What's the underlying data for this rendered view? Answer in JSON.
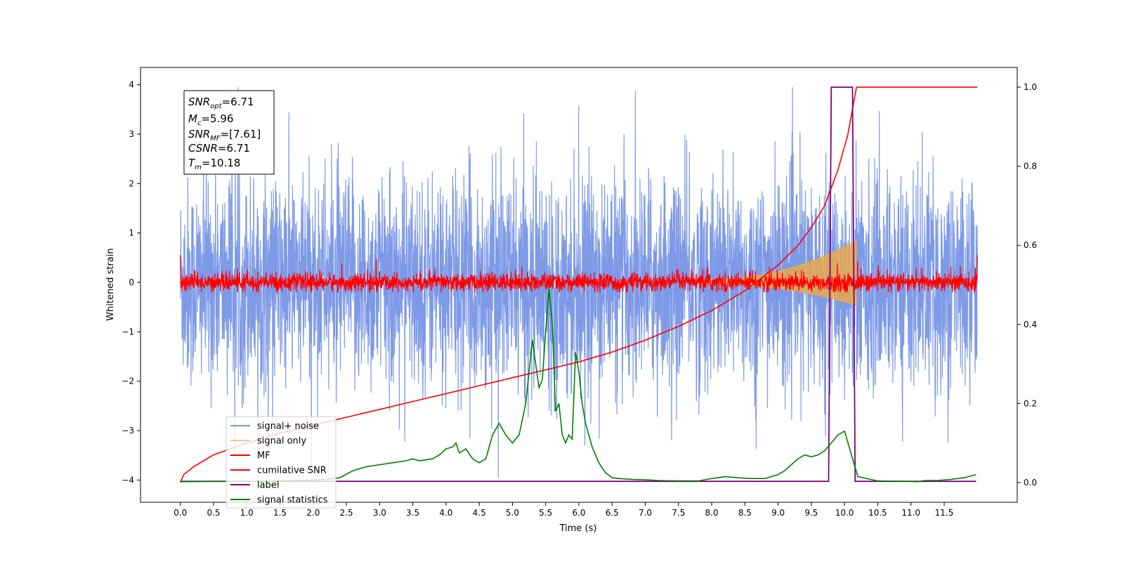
{
  "chart_data": {
    "type": "line",
    "xlabel": "Time (s)",
    "ylabel": "Whitened strain",
    "xlim": [
      -0.6,
      12.6
    ],
    "ylim": [
      -4.45,
      4.35
    ],
    "y2lim": [
      -0.05,
      1.05
    ],
    "x_ticks": [
      "0.0",
      "0.5",
      "1.0",
      "1.5",
      "2.0",
      "2.5",
      "3.0",
      "3.5",
      "4.0",
      "4.5",
      "5.0",
      "5.5",
      "6.0",
      "6.5",
      "7.0",
      "7.5",
      "8.0",
      "8.5",
      "9.0",
      "9.5",
      "10.0",
      "10.5",
      "11.0",
      "11.5"
    ],
    "y_ticks": [
      "4",
      "3",
      "2",
      "1",
      "0",
      "−1",
      "−2",
      "−3",
      "−4"
    ],
    "y2_ticks": [
      "1.0",
      "0.8",
      "0.6",
      "0.4",
      "0.2",
      "0.0"
    ],
    "annotation": {
      "snr_opt": {
        "main": "SNR",
        "sub": "opt",
        "value": "=6.71"
      },
      "mc": {
        "main": "M",
        "sub": "c",
        "value": "=5.96"
      },
      "snr_mf": {
        "main": "SNR",
        "sub": "MF",
        "value": "=[7.61]"
      },
      "csnr": {
        "main": "CSNR",
        "value": "=6.71"
      },
      "tm": {
        "main": "T",
        "sub": "m",
        "value": "=10.18"
      }
    },
    "legend_position": "lower-left",
    "series": [
      {
        "name": "signal+ noise",
        "color": "#7795e6",
        "axis": "left",
        "description": "noise band approx ±2.5 with spikes to ±4, t=0..12"
      },
      {
        "name": "signal only",
        "color": "#e8a94e",
        "axis": "left",
        "chirp": {
          "t_start": 7.8,
          "t_end": 10.18,
          "amp_start": 0.05,
          "amp_end": 0.85
        }
      },
      {
        "name": "MF",
        "color": "#ff0000",
        "axis": "left",
        "description": "noise band approx ±0.2 around 0"
      },
      {
        "name": "cumilative SNR",
        "color": "#ff0000",
        "axis": "right",
        "x": [
          0.0,
          0.05,
          0.2,
          0.5,
          1.0,
          1.5,
          2.0,
          2.5,
          3.0,
          3.5,
          4.0,
          4.5,
          5.0,
          5.5,
          6.0,
          6.5,
          7.0,
          7.5,
          8.0,
          8.5,
          9.0,
          9.3,
          9.5,
          9.7,
          9.9,
          10.05,
          10.18,
          10.5,
          11.0,
          11.5,
          12.0
        ],
        "y": [
          0.0,
          0.02,
          0.04,
          0.07,
          0.1,
          0.125,
          0.145,
          0.165,
          0.185,
          0.205,
          0.225,
          0.245,
          0.265,
          0.285,
          0.305,
          0.33,
          0.36,
          0.395,
          0.435,
          0.485,
          0.55,
          0.6,
          0.645,
          0.7,
          0.79,
          0.88,
          1.0,
          1.0,
          1.0,
          1.0,
          1.0
        ]
      },
      {
        "name": "label",
        "color": "#800080",
        "axis": "right",
        "x": [
          0.0,
          9.76,
          9.8,
          10.12,
          10.16,
          11.98
        ],
        "y": [
          0.003,
          0.003,
          1.0,
          1.0,
          0.003,
          0.003
        ]
      },
      {
        "name": "signal statistics",
        "color": "#008000",
        "axis": "right",
        "x": [
          0.0,
          0.5,
          1.0,
          1.5,
          2.0,
          2.2,
          2.4,
          2.6,
          2.8,
          3.0,
          3.2,
          3.4,
          3.5,
          3.6,
          3.8,
          3.9,
          4.0,
          4.1,
          4.15,
          4.2,
          4.3,
          4.4,
          4.5,
          4.6,
          4.7,
          4.8,
          4.9,
          5.0,
          5.1,
          5.2,
          5.25,
          5.3,
          5.35,
          5.4,
          5.45,
          5.5,
          5.55,
          5.6,
          5.65,
          5.7,
          5.75,
          5.8,
          5.85,
          5.9,
          5.95,
          6.0,
          6.05,
          6.1,
          6.2,
          6.3,
          6.4,
          6.5,
          6.6,
          6.8,
          7.0,
          7.2,
          7.5,
          7.8,
          8.0,
          8.2,
          8.4,
          8.6,
          8.8,
          9.0,
          9.1,
          9.2,
          9.3,
          9.4,
          9.5,
          9.6,
          9.7,
          9.8,
          9.9,
          10.0,
          10.2,
          10.5,
          11.0,
          11.1,
          11.2,
          11.4,
          11.6,
          11.8,
          11.98
        ],
        "y": [
          0.002,
          0.003,
          0.003,
          0.004,
          0.006,
          0.008,
          0.012,
          0.03,
          0.04,
          0.045,
          0.05,
          0.055,
          0.06,
          0.055,
          0.06,
          0.07,
          0.085,
          0.09,
          0.1,
          0.075,
          0.085,
          0.06,
          0.05,
          0.06,
          0.12,
          0.15,
          0.12,
          0.1,
          0.12,
          0.2,
          0.28,
          0.36,
          0.3,
          0.24,
          0.26,
          0.38,
          0.49,
          0.4,
          0.18,
          0.2,
          0.12,
          0.1,
          0.12,
          0.11,
          0.33,
          0.28,
          0.2,
          0.15,
          0.09,
          0.05,
          0.025,
          0.012,
          0.01,
          0.008,
          0.007,
          0.005,
          0.004,
          0.004,
          0.01,
          0.015,
          0.012,
          0.01,
          0.01,
          0.02,
          0.03,
          0.045,
          0.06,
          0.07,
          0.065,
          0.07,
          0.08,
          0.1,
          0.12,
          0.13,
          0.015,
          0.004,
          0.003,
          0.002,
          0.005,
          0.005,
          0.008,
          0.012,
          0.02
        ]
      }
    ]
  }
}
